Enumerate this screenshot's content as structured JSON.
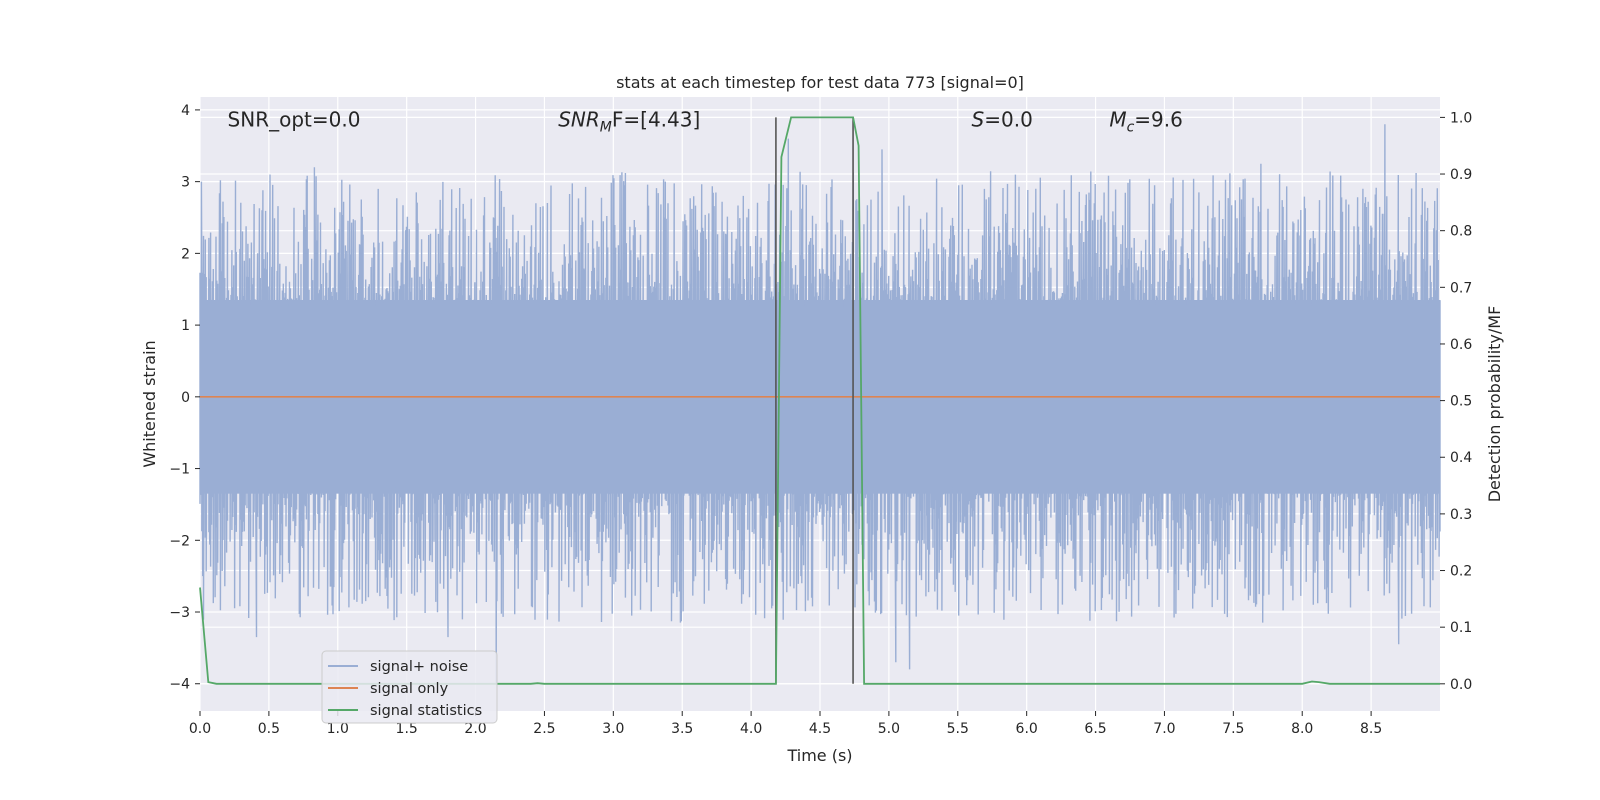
{
  "chart_data": {
    "type": "line",
    "title": "stats at each timestep for test data 773 [signal=0]",
    "xlabel": "Time (s)",
    "ylabel_left": "Whitened strain",
    "ylabel_right": "Detection probability/MF",
    "xlim": [
      0,
      9.0
    ],
    "ylim_left": [
      -4.38,
      4.18
    ],
    "ylim_right": [
      -0.048,
      1.036
    ],
    "x_ticks": [
      0.0,
      0.5,
      1.0,
      1.5,
      2.0,
      2.5,
      3.0,
      3.5,
      4.0,
      4.5,
      5.0,
      5.5,
      6.0,
      6.5,
      7.0,
      7.5,
      8.0,
      8.5
    ],
    "x_tick_labels": [
      "0.0",
      "0.5",
      "1.0",
      "1.5",
      "2.0",
      "2.5",
      "3.0",
      "3.5",
      "4.0",
      "4.5",
      "5.0",
      "5.5",
      "6.0",
      "6.5",
      "7.0",
      "7.5",
      "8.0",
      "8.5"
    ],
    "y_left_ticks": [
      -4,
      -3,
      -2,
      -1,
      0,
      1,
      2,
      3,
      4
    ],
    "y_left_tick_labels": [
      "−4",
      "−3",
      "−2",
      "−1",
      "0",
      "1",
      "2",
      "3",
      "4"
    ],
    "y_right_ticks": [
      0.0,
      0.1,
      0.2,
      0.3,
      0.4,
      0.5,
      0.6,
      0.7,
      0.8,
      0.9,
      1.0
    ],
    "y_right_tick_labels": [
      "0.0",
      "0.1",
      "0.2",
      "0.3",
      "0.4",
      "0.5",
      "0.6",
      "0.7",
      "0.8",
      "0.9",
      "1.0"
    ],
    "grid": true,
    "legend_position": "lower-left",
    "annotations": [
      {
        "name": "snr-opt",
        "prefix": "SNR_opt=0.0",
        "italic": "",
        "sub": "",
        "suffix": ""
      },
      {
        "name": "snr-mf",
        "prefix": "",
        "italic": "SNR",
        "sub": "M",
        "suffix": "F=[4.43]"
      },
      {
        "name": "s-value",
        "prefix": "",
        "italic": "S",
        "sub": "",
        "suffix": "=0.0"
      },
      {
        "name": "mc-value",
        "prefix": "",
        "italic": "M",
        "sub": "c",
        "suffix": "=9.6"
      }
    ],
    "vertical_markers_x": [
      4.18,
      4.74
    ],
    "series": [
      {
        "name": "signal+ noise",
        "axis": "left",
        "color": "#9aaed4",
        "style": "noise band, amplitude roughly ±2.5 with peaks near ±3.5",
        "notable_peaks": [
          {
            "x": 0.01,
            "y": 3.0
          },
          {
            "x": 0.83,
            "y": 3.2
          },
          {
            "x": 4.27,
            "y": 3.6
          },
          {
            "x": 4.95,
            "y": 3.45
          },
          {
            "x": 7.7,
            "y": 3.25
          },
          {
            "x": 8.6,
            "y": 3.8
          },
          {
            "x": 0.41,
            "y": -3.35
          },
          {
            "x": 1.8,
            "y": -3.35
          },
          {
            "x": 2.15,
            "y": -4.0
          },
          {
            "x": 5.05,
            "y": -3.7
          },
          {
            "x": 5.15,
            "y": -3.8
          },
          {
            "x": 8.7,
            "y": -3.45
          }
        ]
      },
      {
        "name": "signal only",
        "axis": "left",
        "color": "#dd8452",
        "x": [
          0.0,
          9.0
        ],
        "y": [
          0.0,
          0.0
        ]
      },
      {
        "name": "signal statistics",
        "axis": "right",
        "color": "#55a868",
        "x": [
          0.0,
          0.06,
          0.12,
          2.0,
          2.4,
          2.45,
          2.5,
          4.18,
          4.22,
          4.29,
          4.74,
          4.78,
          4.82,
          4.88,
          8.0,
          8.07,
          8.12,
          8.2,
          9.0
        ],
        "y": [
          0.17,
          0.003,
          0.0,
          0.0,
          0.0,
          0.001,
          0.0,
          0.0,
          0.93,
          1.0,
          1.0,
          0.95,
          0.0,
          0.0,
          0.0,
          0.004,
          0.003,
          0.0,
          0.0
        ]
      }
    ]
  },
  "colors": {
    "plot_background": "#eaeaf2",
    "grid": "#ffffff",
    "marker_line": "#555555"
  }
}
